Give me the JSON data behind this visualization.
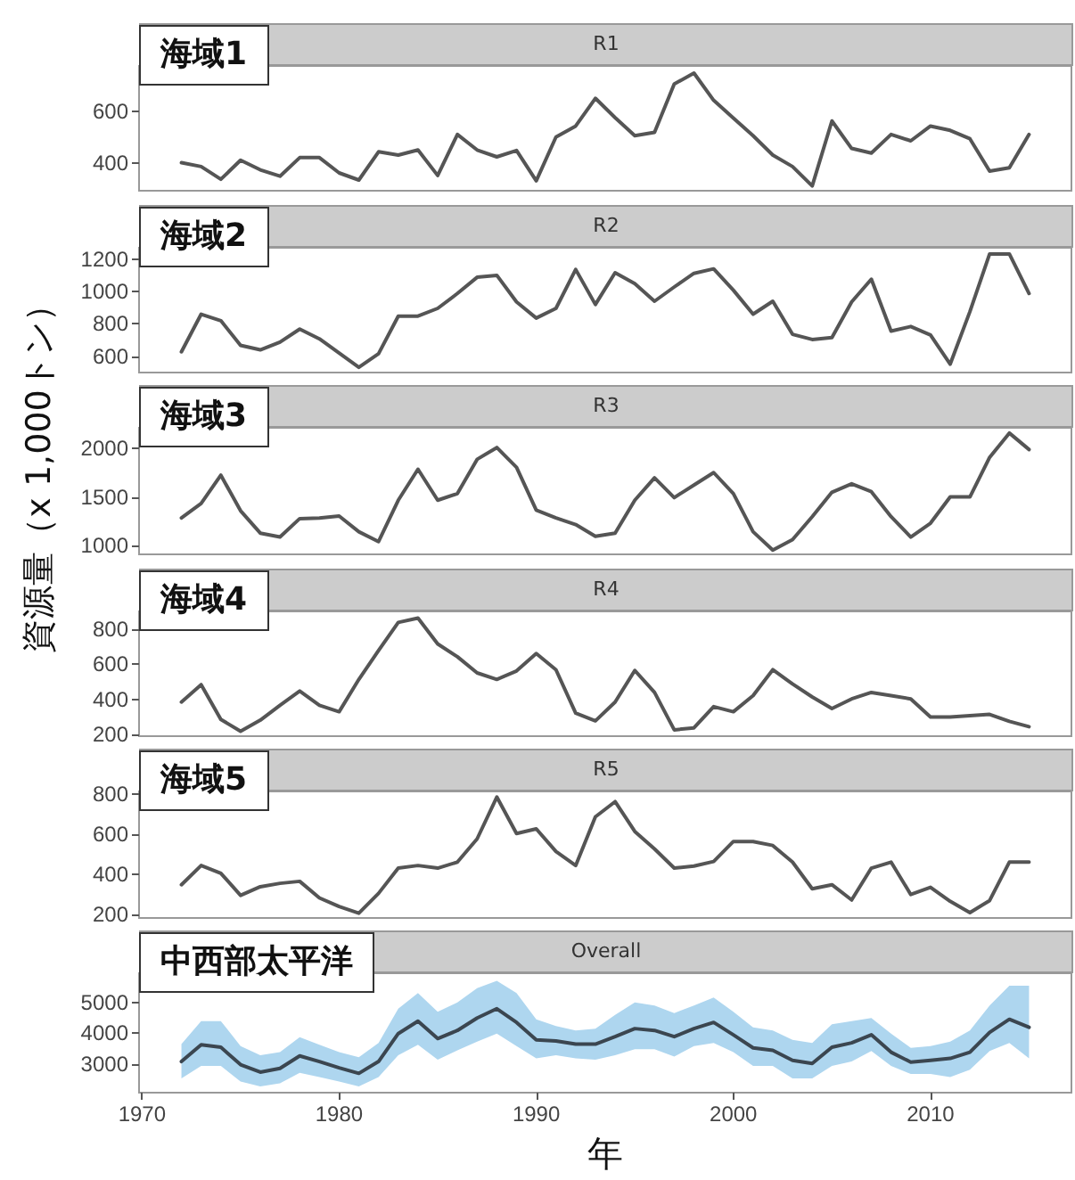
{
  "chart_data": [
    {
      "type": "line",
      "title": "R1",
      "subtitle": "海域1",
      "x": [
        1972,
        1973,
        1974,
        1975,
        1976,
        1977,
        1978,
        1979,
        1980,
        1981,
        1982,
        1983,
        1984,
        1985,
        1986,
        1987,
        1988,
        1989,
        1990,
        1991,
        1992,
        1993,
        1994,
        1995,
        1996,
        1997,
        1998,
        1999,
        2000,
        2001,
        2002,
        2003,
        2004,
        2005,
        2006,
        2007,
        2008,
        2009,
        2010,
        2011,
        2012,
        2013,
        2014,
        2015
      ],
      "series": [
        {
          "color": "#555555",
          "values": [
            400,
            385,
            335,
            410,
            372,
            347,
            420,
            420,
            360,
            332,
            443,
            430,
            450,
            350,
            511,
            450,
            423,
            448,
            329,
            501,
            544,
            653,
            577,
            506,
            519,
            709,
            752,
            645,
            575,
            506,
            430,
            385,
            309,
            564,
            456,
            438,
            511,
            486,
            544,
            527,
            494,
            367,
            380,
            511
          ]
        }
      ],
      "xlim": [
        1969.85,
        2017.15
      ],
      "ylim": [
        290,
        780
      ],
      "yticks": [
        400,
        600
      ],
      "tick_labels": "y"
    },
    {
      "type": "line",
      "title": "R2",
      "subtitle": "海域2",
      "x": [
        1972,
        1973,
        1974,
        1975,
        1976,
        1977,
        1978,
        1979,
        1980,
        1981,
        1982,
        1983,
        1984,
        1985,
        1986,
        1987,
        1988,
        1989,
        1990,
        1991,
        1992,
        1993,
        1994,
        1995,
        1996,
        1997,
        1998,
        1999,
        2000,
        2001,
        2002,
        2003,
        2004,
        2005,
        2006,
        2007,
        2008,
        2009,
        2010,
        2011,
        2012,
        2013,
        2014,
        2015
      ],
      "series": [
        {
          "color": "#555555",
          "values": [
            628,
            860,
            820,
            668,
            640,
            688,
            768,
            708,
            620,
            532,
            616,
            848,
            848,
            896,
            988,
            1088,
            1100,
            936,
            836,
            896,
            1136,
            920,
            1116,
            1048,
            940,
            1028,
            1112,
            1140,
            1008,
            860,
            940,
            736,
            704,
            716,
            936,
            1076,
            756,
            784,
            732,
            552,
            876,
            1232,
            1232,
            988
          ]
        }
      ],
      "xlim": [
        1969.85,
        2017.15
      ],
      "ylim": [
        500,
        1270
      ],
      "yticks": [
        600,
        800,
        1000,
        1200
      ],
      "tick_labels": "y"
    },
    {
      "type": "line",
      "title": "R3",
      "subtitle": "海域3",
      "ylabel": "資源量（x 1,000トン）",
      "x": [
        1972,
        1973,
        1974,
        1975,
        1976,
        1977,
        1978,
        1979,
        1980,
        1981,
        1982,
        1983,
        1984,
        1985,
        1986,
        1987,
        1988,
        1989,
        1990,
        1991,
        1992,
        1993,
        1994,
        1995,
        1996,
        1997,
        1998,
        1999,
        2000,
        2001,
        2002,
        2003,
        2004,
        2005,
        2006,
        2007,
        2008,
        2009,
        2010,
        2011,
        2012,
        2013,
        2014,
        2015
      ],
      "series": [
        {
          "color": "#555555",
          "values": [
            1284,
            1433,
            1723,
            1358,
            1128,
            1088,
            1277,
            1284,
            1304,
            1142,
            1041,
            1466,
            1784,
            1466,
            1534,
            1886,
            2007,
            1804,
            1365,
            1284,
            1216,
            1095,
            1128,
            1466,
            1696,
            1493,
            1622,
            1750,
            1534,
            1142,
            953,
            1061,
            1297,
            1548,
            1635,
            1554,
            1297,
            1088,
            1230,
            1500,
            1500,
            1906,
            2156,
            1987
          ]
        }
      ],
      "xlim": [
        1969.85,
        2017.15
      ],
      "ylim": [
        910,
        2210
      ],
      "yticks": [
        1000,
        1500,
        2000
      ],
      "tick_labels": "y"
    },
    {
      "type": "line",
      "title": "R4",
      "subtitle": "海域4",
      "x": [
        1972,
        1973,
        1974,
        1975,
        1976,
        1977,
        1978,
        1979,
        1980,
        1981,
        1982,
        1983,
        1984,
        1985,
        1986,
        1987,
        1988,
        1989,
        1990,
        1991,
        1992,
        1993,
        1994,
        1995,
        1996,
        1997,
        1998,
        1999,
        2000,
        2001,
        2002,
        2003,
        2004,
        2005,
        2006,
        2007,
        2008,
        2009,
        2010,
        2011,
        2012,
        2013,
        2014,
        2015
      ],
      "series": [
        {
          "color": "#555555",
          "values": [
            384,
            483,
            285,
            218,
            281,
            366,
            447,
            366,
            329,
            513,
            678,
            837,
            862,
            715,
            642,
            550,
            513,
            561,
            660,
            568,
            321,
            277,
            384,
            564,
            439,
            226,
            237,
            358,
            329,
            421,
            568,
            487,
            413,
            347,
            402,
            439,
            421,
            402,
            299,
            299,
            307,
            314,
            274,
            244
          ]
        }
      ],
      "xlim": [
        1969.85,
        2017.15
      ],
      "ylim": [
        190,
        900
      ],
      "yticks": [
        200,
        400,
        600,
        800
      ],
      "tick_labels": "y"
    },
    {
      "type": "line",
      "title": "R5",
      "subtitle": "海域5",
      "x": [
        1972,
        1973,
        1974,
        1975,
        1976,
        1977,
        1978,
        1979,
        1980,
        1981,
        1982,
        1983,
        1984,
        1985,
        1986,
        1987,
        1988,
        1989,
        1990,
        1991,
        1992,
        1993,
        1994,
        1995,
        1996,
        1997,
        1998,
        1999,
        2000,
        2001,
        2002,
        2003,
        2004,
        2005,
        2006,
        2007,
        2008,
        2009,
        2010,
        2011,
        2012,
        2013,
        2014,
        2015
      ],
      "series": [
        {
          "color": "#555555",
          "values": [
            349,
            445,
            406,
            296,
            339,
            356,
            366,
            283,
            240,
            207,
            306,
            432,
            445,
            432,
            462,
            578,
            787,
            605,
            628,
            515,
            445,
            688,
            764,
            615,
            528,
            432,
            442,
            465,
            565,
            565,
            545,
            462,
            329,
            349,
            273,
            432,
            462,
            300,
            336,
            266,
            210,
            270,
            462,
            462
          ]
        }
      ],
      "xlim": [
        1969.85,
        2017.15
      ],
      "ylim": [
        183,
        815
      ],
      "yticks": [
        200,
        400,
        600,
        800
      ],
      "tick_labels": "y"
    },
    {
      "type": "line",
      "title": "Overall",
      "subtitle": "中西部太平洋",
      "xlabel": "年",
      "x": [
        1972,
        1973,
        1974,
        1975,
        1976,
        1977,
        1978,
        1979,
        1980,
        1981,
        1982,
        1983,
        1984,
        1985,
        1986,
        1987,
        1988,
        1989,
        1990,
        1991,
        1992,
        1993,
        1994,
        1995,
        1996,
        1997,
        1998,
        1999,
        2000,
        2001,
        2002,
        2003,
        2004,
        2005,
        2006,
        2007,
        2008,
        2009,
        2010,
        2011,
        2012,
        2013,
        2014,
        2015
      ],
      "series": [
        {
          "color": "#3b4650",
          "values": [
            3081,
            3626,
            3545,
            2980,
            2737,
            2859,
            3263,
            3081,
            2879,
            2697,
            3081,
            3990,
            4394,
            3828,
            4091,
            4495,
            4798,
            4353,
            3788,
            3747,
            3646,
            3646,
            3889,
            4151,
            4091,
            3889,
            4151,
            4353,
            3949,
            3525,
            3444,
            3121,
            3020,
            3545,
            3687,
            3949,
            3384,
            3061,
            3121,
            3182,
            3384,
            4030,
            4454,
            4192
          ],
          "lower": [
            2535,
            2939,
            2939,
            2434,
            2273,
            2374,
            2717,
            2576,
            2434,
            2273,
            2576,
            3283,
            3626,
            3141,
            3444,
            3727,
            3990,
            3586,
            3182,
            3283,
            3182,
            3141,
            3283,
            3485,
            3485,
            3242,
            3586,
            3687,
            3384,
            2939,
            2939,
            2535,
            2535,
            2939,
            3081,
            3424,
            2939,
            2677,
            2677,
            2576,
            2818,
            3424,
            3687,
            3182
          ],
          "upper": [
            3646,
            4394,
            4394,
            3586,
            3283,
            3384,
            3869,
            3626,
            3384,
            3222,
            3687,
            4798,
            5303,
            4697,
            5000,
            5464,
            5707,
            5303,
            4454,
            4232,
            4091,
            4151,
            4596,
            5000,
            4899,
            4656,
            4899,
            5161,
            4697,
            4192,
            4091,
            3788,
            3687,
            4293,
            4394,
            4495,
            3990,
            3525,
            3586,
            3727,
            4091,
            4899,
            5545,
            5545
          ]
        }
      ],
      "xlim": [
        1969.85,
        2017.15
      ],
      "xticks": [
        1970,
        1980,
        1990,
        2000,
        2010
      ],
      "ylim": [
        2070,
        5950
      ],
      "yticks": [
        3000,
        4000,
        5000
      ]
    }
  ]
}
